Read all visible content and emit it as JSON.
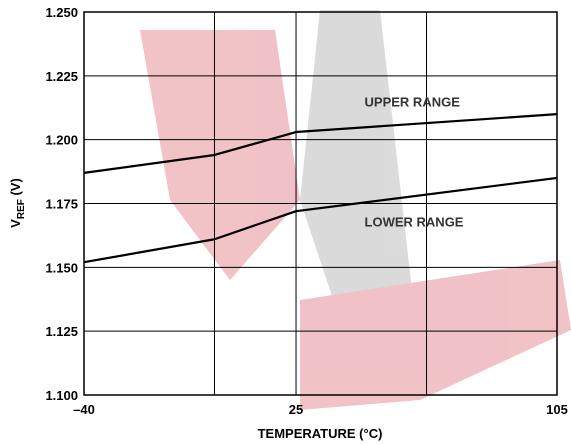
{
  "chart_data": {
    "type": "line",
    "xlabel": "TEMPERATURE (°C)",
    "ylabel_main": "V",
    "ylabel_sub": "REF",
    "ylabel_unit": " (V)",
    "xlim": [
      -40,
      105
    ],
    "ylim": [
      1.1,
      1.25
    ],
    "grid": true,
    "x_grid_values": [
      -40,
      0,
      25,
      65,
      105
    ],
    "y_ticks": [
      1.1,
      1.125,
      1.15,
      1.175,
      1.2,
      1.225,
      1.25
    ],
    "y_tick_labels": [
      "1.100",
      "1.125",
      "1.150",
      "1.175",
      "1.200",
      "1.225",
      "1.250"
    ],
    "x_ticks": [
      -40,
      25,
      105
    ],
    "x_tick_labels": [
      "–40",
      "25",
      "105"
    ],
    "series": [
      {
        "name": "UPPER RANGE",
        "x": [
          -40,
          0,
          25,
          105
        ],
        "y": [
          1.187,
          1.194,
          1.203,
          1.21
        ],
        "color": "#000000"
      },
      {
        "name": "LOWER RANGE",
        "x": [
          -40,
          0,
          25,
          105
        ],
        "y": [
          1.152,
          1.161,
          1.172,
          1.185
        ],
        "color": "#000000"
      }
    ],
    "annotations": [
      {
        "text": "UPPER RANGE",
        "x": 46,
        "y": 1.213
      },
      {
        "text": "LOWER RANGE",
        "x": 46,
        "y": 1.166
      }
    ],
    "watermark_colors": [
      "#e58f98",
      "#bdbdbd"
    ]
  }
}
